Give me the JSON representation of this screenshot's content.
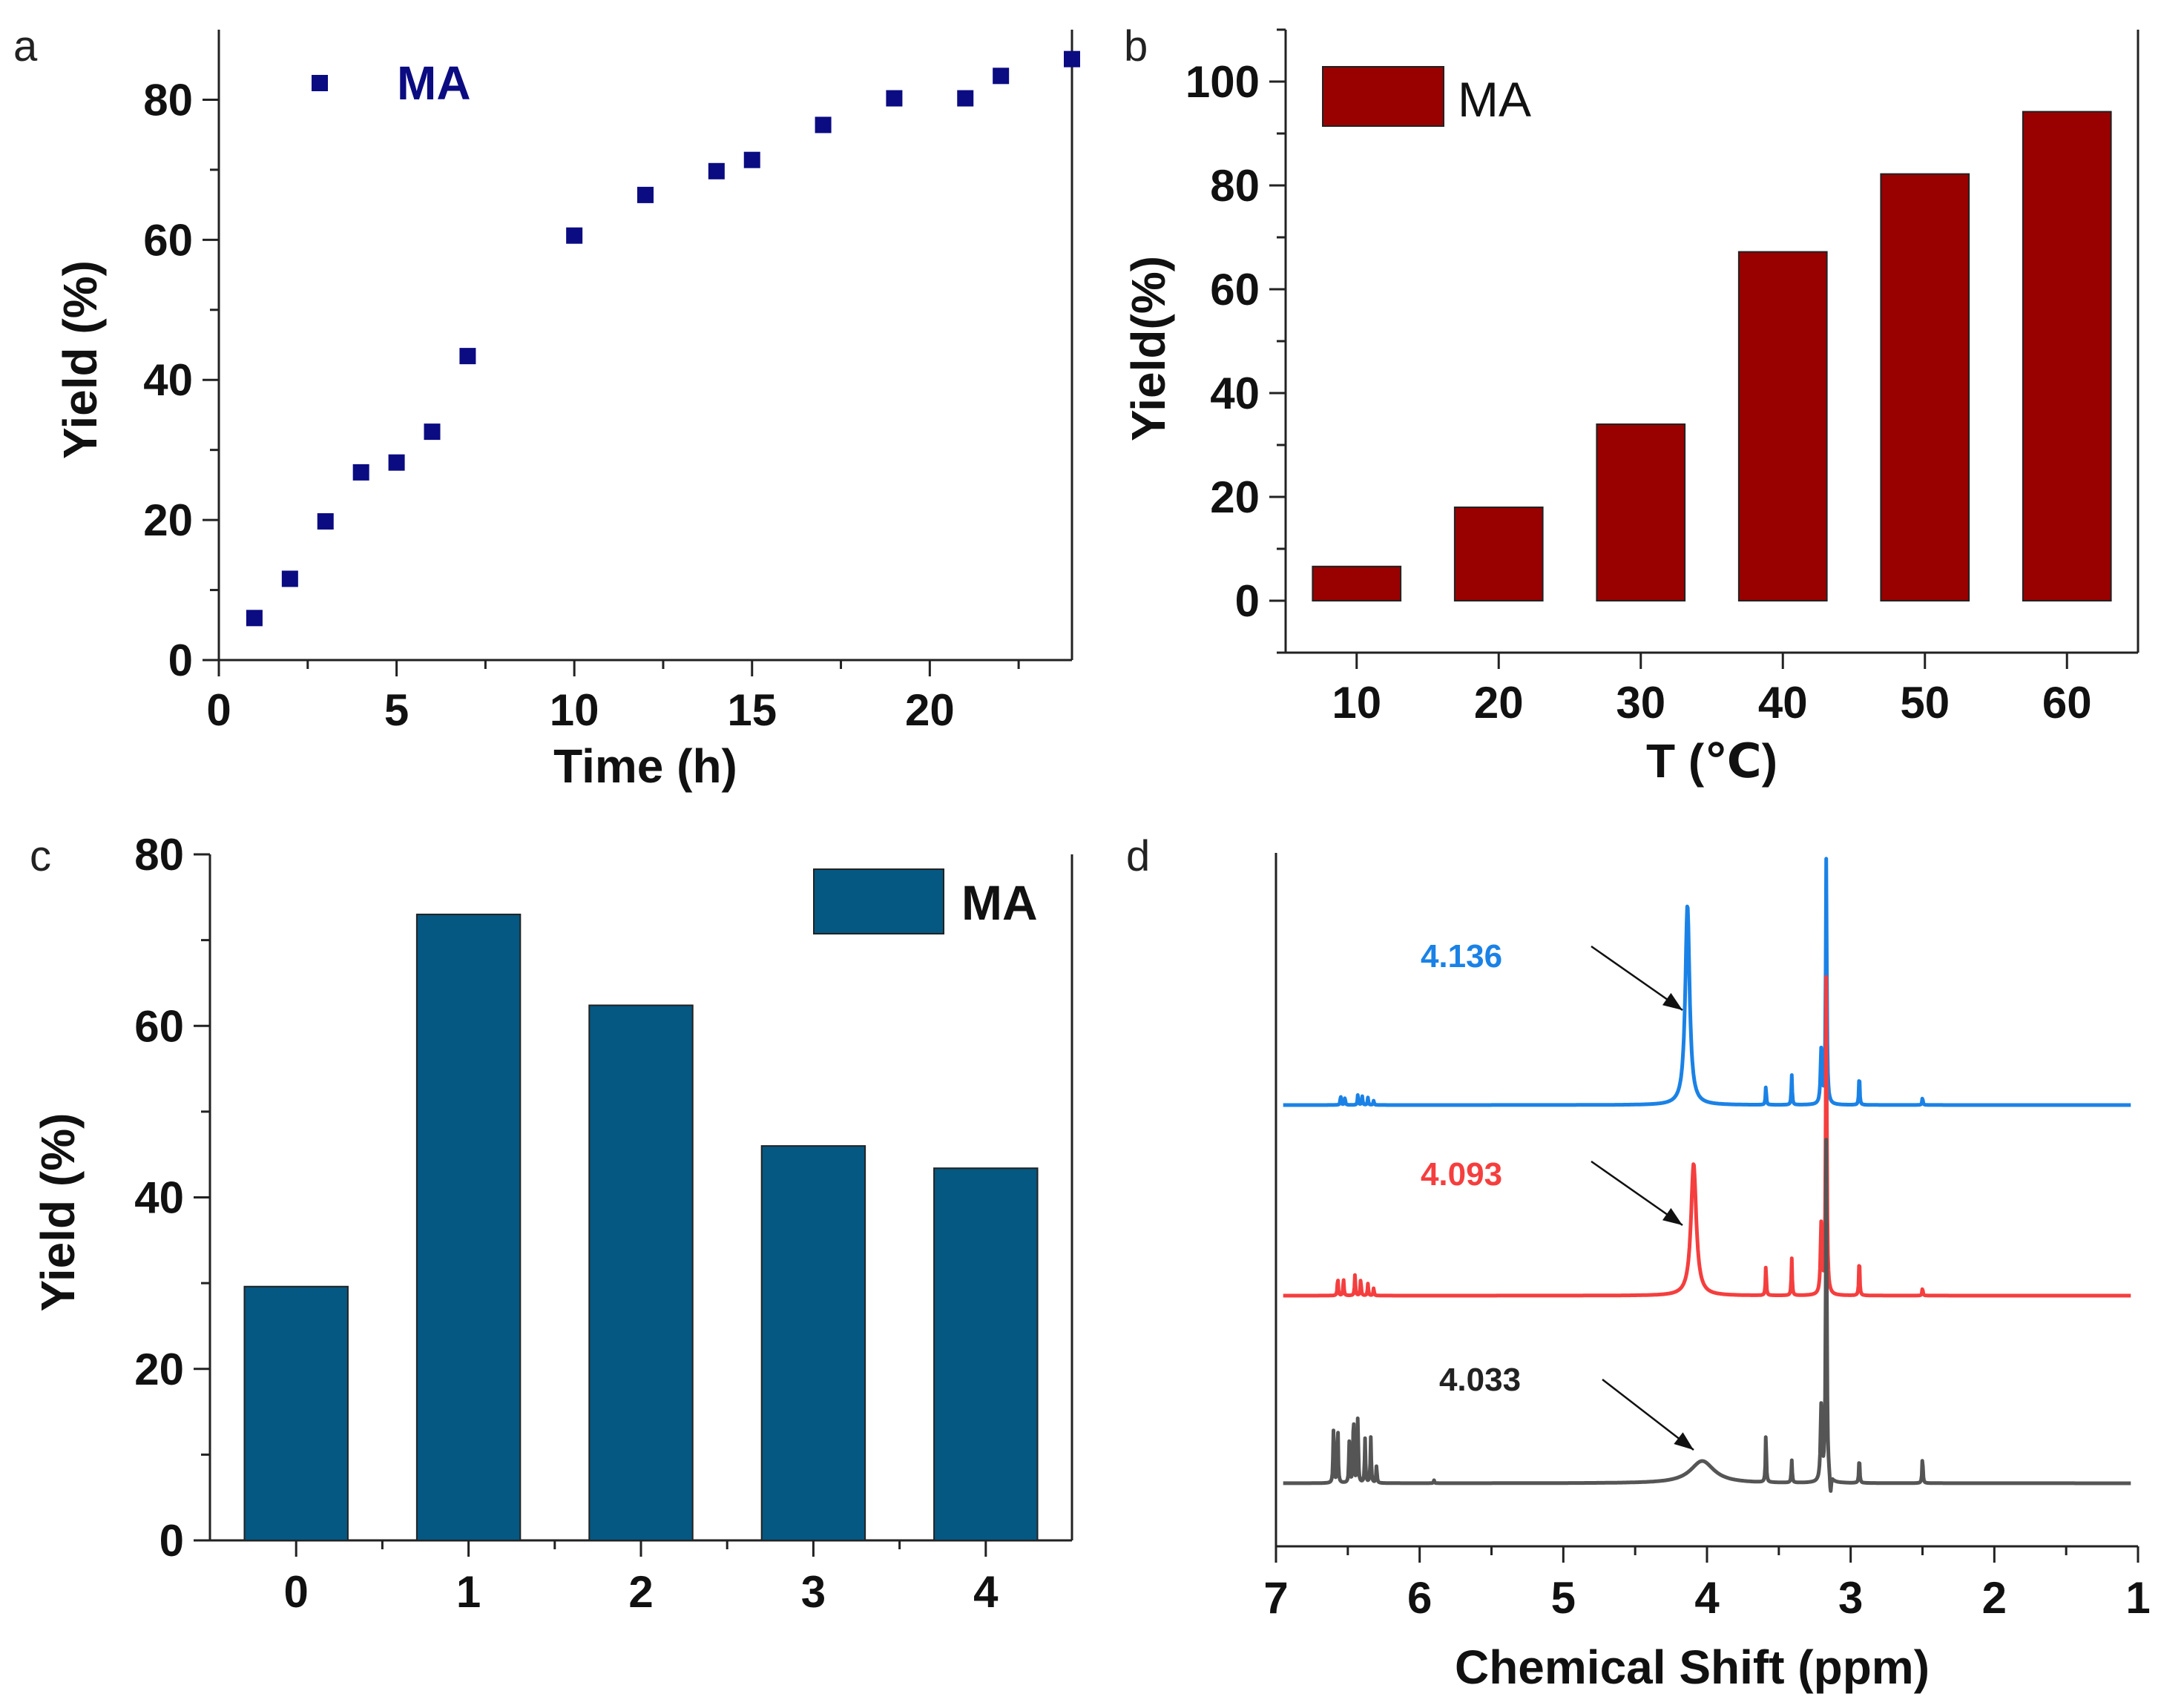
{
  "chart_data": [
    {
      "panel": "a",
      "type": "scatter",
      "xlabel": "Time (h)",
      "ylabel": "Yield (%)",
      "xlim": [
        0,
        24
      ],
      "ylim": [
        0,
        90
      ],
      "xticks": [
        0,
        5,
        10,
        15,
        20
      ],
      "yticks": [
        0,
        20,
        40,
        60,
        80
      ],
      "legend": "MA",
      "legend_position": "top-left",
      "color": "#0B0B82",
      "series": [
        {
          "name": "MA",
          "x": [
            1,
            2,
            3,
            4,
            5,
            6,
            7,
            10,
            12,
            14,
            15,
            17,
            19,
            21,
            22,
            24
          ],
          "y": [
            6,
            11.6,
            19.8,
            26.8,
            28.2,
            32.6,
            43.4,
            60.6,
            66.4,
            69.8,
            71.4,
            76.4,
            80.2,
            80.2,
            83.4,
            85.8
          ]
        }
      ]
    },
    {
      "panel": "b",
      "type": "bar",
      "xlabel": "T (℃)",
      "ylabel": "Yield(%)",
      "categories": [
        "10",
        "20",
        "30",
        "40",
        "50",
        "60"
      ],
      "values": [
        6.6,
        18,
        34,
        67.2,
        82.2,
        94.2
      ],
      "ylim": [
        -10,
        110
      ],
      "yticks": [
        0,
        20,
        40,
        60,
        80,
        100
      ],
      "legend": "MA",
      "legend_position": "top-left",
      "color": "#990000"
    },
    {
      "panel": "c",
      "type": "bar",
      "xlabel": "",
      "ylabel": "Yield (%)",
      "categories": [
        "0",
        "1",
        "2",
        "3",
        "4"
      ],
      "values": [
        29.6,
        73,
        62.4,
        46,
        43.4
      ],
      "ylim": [
        0,
        80
      ],
      "yticks": [
        0,
        20,
        40,
        60,
        80
      ],
      "legend": "MA",
      "legend_position": "top-right",
      "color": "#045882"
    },
    {
      "panel": "d",
      "type": "line",
      "xlabel": "Chemical Shift (ppm)",
      "ylabel": "",
      "xlim": [
        7,
        1
      ],
      "xticks": [
        7,
        6,
        5,
        4,
        3,
        2,
        1
      ],
      "series": [
        {
          "name": "top",
          "color": "#1A82E6",
          "peak_label": "4.136",
          "peak_shift": 4.136
        },
        {
          "name": "middle",
          "color": "#F53E3E",
          "peak_label": "4.093",
          "peak_shift": 4.093
        },
        {
          "name": "bottom",
          "color": "#555555",
          "peak_label": "4.033",
          "peak_shift": 4.033
        }
      ]
    }
  ]
}
